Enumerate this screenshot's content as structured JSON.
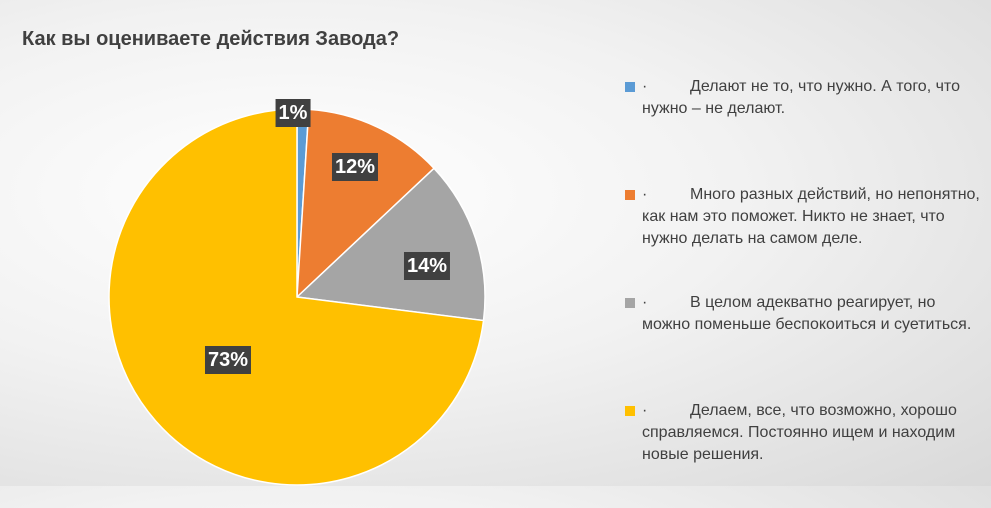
{
  "chart_data": {
    "type": "pie",
    "title": "Как вы оцениваете действия Завода?",
    "categories": [
      "Делают не то, что нужно. А того, что нужно – не делают.",
      "Много разных действий, но непонятно, как нам это поможет. Никто не знает, что нужно делать на самом деле.",
      "В целом адекватно реагирует, но можно поменьше беспокоиться и суетиться.",
      "Делаем, все, что возможно, хорошо справляемся. Постоянно ищем и находим новые решения."
    ],
    "values": [
      1,
      12,
      14,
      73
    ],
    "data_labels": [
      "1%",
      "12%",
      "14%",
      "73%"
    ],
    "colors": [
      "#5b9bd5",
      "#ed7d31",
      "#a5a5a5",
      "#ffc000"
    ],
    "legend_bullet": "·",
    "legend_position": "right"
  }
}
